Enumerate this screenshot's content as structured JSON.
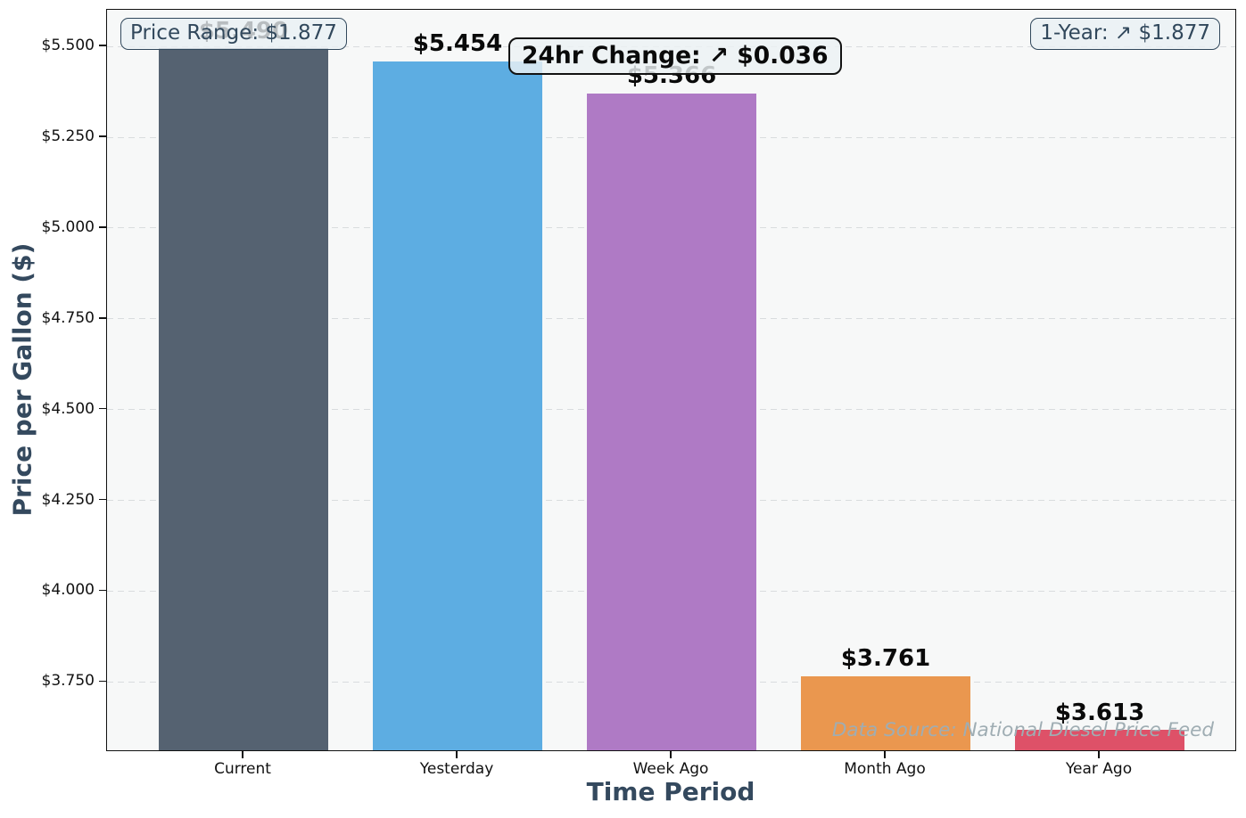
{
  "chart_data": {
    "type": "bar",
    "title": "",
    "xlabel": "Time Period",
    "ylabel": "Price per Gallon ($)",
    "categories": [
      "Current",
      "Yesterday",
      "Week Ago",
      "Month Ago",
      "Year Ago"
    ],
    "values": [
      5.49,
      5.454,
      5.366,
      3.761,
      3.613
    ],
    "bar_labels": [
      "$5.490",
      "$5.454",
      "$5.366",
      "$3.761",
      "$3.613"
    ],
    "bar_colors": [
      "#556271",
      "#5DADE2",
      "#AF7AC5",
      "#EA974F",
      "#DE5168"
    ],
    "ylim": [
      3.557,
      5.601
    ],
    "yticks": [
      3.75,
      4.0,
      4.25,
      4.5,
      4.75,
      5.0,
      5.25,
      5.5
    ],
    "ytick_labels": [
      "$3.750",
      "$4.000",
      "$4.250",
      "$4.500",
      "$4.750",
      "$5.000",
      "$5.250",
      "$5.500"
    ],
    "grid": "horizontal-dashed",
    "legend": null
  },
  "annotations": {
    "price_range": "Price Range: $1.877",
    "change_24hr": "24hr Change: ↗ $0.036",
    "one_year": "1-Year: ↗ $1.877",
    "data_source": "Data Source: National Diesel Price Feed"
  },
  "colors": {
    "figure_bg": "#ffffff",
    "plot_bg": "#f7f8f8",
    "grid": "#d9dcde",
    "axis_title": "#34495E",
    "tick_label": "#111111",
    "bar_value_label": "#0a0a0a",
    "annotation_box_bg": "#e9f0f4",
    "annotation_box_text": "#31485c",
    "change_box_text": "#0a0a0a",
    "watermark": "#9fadb3"
  }
}
